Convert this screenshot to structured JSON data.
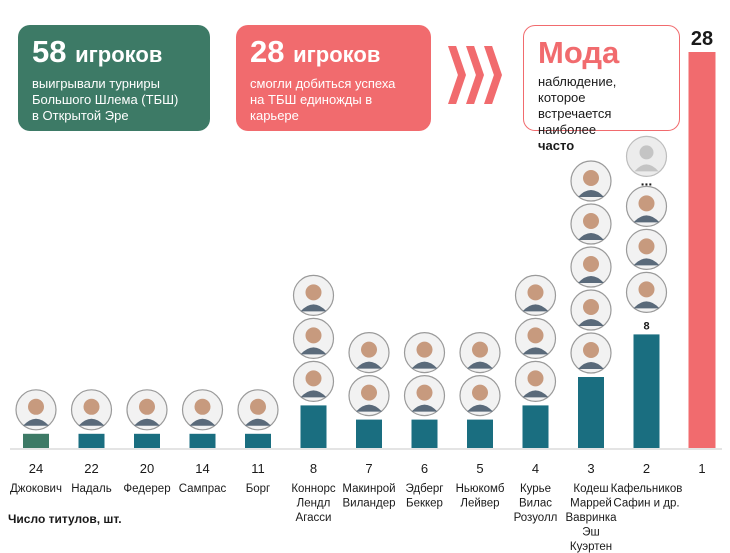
{
  "cards": [
    {
      "number": "58",
      "unit": "игроков",
      "lines": [
        "выигрывали турниры",
        "Большого Шлема (ТБШ)",
        "в Открытой Эре"
      ]
    },
    {
      "number": "28",
      "unit": "игроков",
      "lines": [
        "смогли добиться успеха",
        "на ТБШ единожды в",
        "карьере"
      ]
    },
    {
      "number": "Мода",
      "unit": "",
      "lines": [
        "наблюдение, которое",
        "встречается наиболее",
        "часто"
      ]
    }
  ],
  "colors": {
    "teal_dark": "#3d7a66",
    "teal": "#1a6e80",
    "coral": "#f16b6e"
  },
  "chart_data": {
    "type": "bar",
    "categories": [
      "24",
      "22",
      "20",
      "14",
      "11",
      "8",
      "7",
      "6",
      "5",
      "4",
      "3",
      "2",
      "1"
    ],
    "values": [
      1,
      1,
      1,
      1,
      1,
      3,
      2,
      2,
      2,
      3,
      5,
      8,
      28
    ],
    "players": [
      [
        "Джокович"
      ],
      [
        "Надаль"
      ],
      [
        "Федерер"
      ],
      [
        "Сампрас"
      ],
      [
        "Борг"
      ],
      [
        "Коннорс",
        "Лендл",
        "Агасси"
      ],
      [
        "Макинрой",
        "Виландер"
      ],
      [
        "Эдберг",
        "Беккер"
      ],
      [
        "Ньюкомб",
        "Лейвер"
      ],
      [
        "Курье",
        "Вилас",
        "Розуолл"
      ],
      [
        "Кодеш",
        "Маррей",
        "Вавринка",
        "Эш",
        "Куэртен"
      ],
      [
        "Кафельников",
        "Сафин и др."
      ],
      [
        ""
      ]
    ],
    "data_labels": {
      "11": "8",
      "12": "28"
    },
    "portraits": [
      1,
      1,
      1,
      1,
      1,
      3,
      2,
      2,
      2,
      3,
      5,
      3,
      0
    ],
    "ellipsis_after": {
      "11": "..."
    },
    "xlabel": "Число титулов, шт."
  }
}
